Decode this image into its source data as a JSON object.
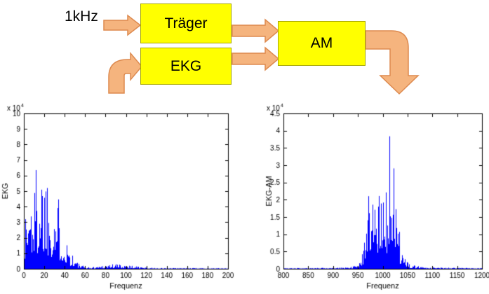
{
  "diagram": {
    "input_label": "1kHz",
    "blocks": [
      {
        "label": "Träger"
      },
      {
        "label": "EKG"
      },
      {
        "label": "AM"
      }
    ],
    "colors": {
      "block_fill": "#ffff00",
      "block_border": "#a6a600",
      "arrow_fill": "#f5b47e",
      "arrow_stroke": "#dd8a4f"
    }
  },
  "chart_data": [
    {
      "type": "line",
      "title": "",
      "ylabel": "EKG",
      "xlabel": "Frequenz",
      "scale_prefix": "x 10",
      "scale_exp": "4",
      "xlim": [
        0,
        200
      ],
      "ylim": [
        0,
        10
      ],
      "xticks": [
        0,
        20,
        40,
        60,
        80,
        100,
        120,
        140,
        160,
        180,
        200
      ],
      "yticks": [
        0,
        1,
        2,
        3,
        4,
        5,
        6,
        7,
        8,
        9,
        10
      ],
      "grid": false,
      "legend": "none",
      "line_color": "#0000ff",
      "noise_seed": 1337,
      "noise_min": 0.12,
      "noise_pow": 1.8,
      "envelope": [
        [
          0,
          3.5
        ],
        [
          3,
          5.5
        ],
        [
          8,
          6.5
        ],
        [
          12,
          7.2
        ],
        [
          16,
          9.2
        ],
        [
          18,
          7.5
        ],
        [
          20,
          8.3
        ],
        [
          24,
          6.8
        ],
        [
          28,
          6.2
        ],
        [
          32,
          5.2
        ],
        [
          36,
          4.2
        ],
        [
          40,
          3.0
        ],
        [
          44,
          1.8
        ],
        [
          48,
          1.0
        ],
        [
          52,
          0.5
        ],
        [
          56,
          0.25
        ],
        [
          60,
          0.15
        ],
        [
          65,
          0.1
        ],
        [
          70,
          0.15
        ],
        [
          75,
          0.25
        ],
        [
          80,
          0.3
        ],
        [
          85,
          0.35
        ],
        [
          90,
          0.35
        ],
        [
          95,
          0.3
        ],
        [
          100,
          0.3
        ],
        [
          105,
          0.25
        ],
        [
          110,
          0.2
        ],
        [
          115,
          0.12
        ],
        [
          120,
          0.08
        ],
        [
          130,
          0.06
        ],
        [
          140,
          0.05
        ],
        [
          160,
          0.05
        ],
        [
          180,
          0.05
        ],
        [
          200,
          0.04
        ]
      ]
    },
    {
      "type": "line",
      "title": "",
      "ylabel": "EKG-AM",
      "xlabel": "Frequenz",
      "scale_prefix": "x 10",
      "scale_exp": "4",
      "xlim": [
        800,
        1200
      ],
      "ylim": [
        0,
        4.5
      ],
      "xticks": [
        800,
        850,
        900,
        950,
        1000,
        1050,
        1100,
        1150,
        1200
      ],
      "yticks": [
        0,
        0.5,
        1,
        1.5,
        2,
        2.5,
        3,
        3.5,
        4,
        4.5
      ],
      "grid": false,
      "legend": "none",
      "line_color": "#0000ff",
      "noise_seed": 2024,
      "noise_min": 0.15,
      "noise_pow": 1.6,
      "envelope": [
        [
          800,
          0.02
        ],
        [
          850,
          0.025
        ],
        [
          900,
          0.03
        ],
        [
          920,
          0.04
        ],
        [
          940,
          0.08
        ],
        [
          950,
          0.15
        ],
        [
          955,
          0.3
        ],
        [
          960,
          0.7
        ],
        [
          965,
          1.5
        ],
        [
          970,
          2.7
        ],
        [
          975,
          3.7
        ],
        [
          980,
          4.35
        ],
        [
          985,
          3.2
        ],
        [
          990,
          2.6
        ],
        [
          995,
          2.9
        ],
        [
          1000,
          2.3
        ],
        [
          1005,
          2.7
        ],
        [
          1010,
          3.1
        ],
        [
          1015,
          4.3
        ],
        [
          1020,
          3.4
        ],
        [
          1025,
          2.4
        ],
        [
          1030,
          1.5
        ],
        [
          1035,
          0.9
        ],
        [
          1040,
          0.55
        ],
        [
          1045,
          0.3
        ],
        [
          1050,
          0.18
        ],
        [
          1060,
          0.1
        ],
        [
          1080,
          0.06
        ],
        [
          1100,
          0.04
        ],
        [
          1150,
          0.03
        ],
        [
          1200,
          0.02
        ]
      ]
    }
  ]
}
